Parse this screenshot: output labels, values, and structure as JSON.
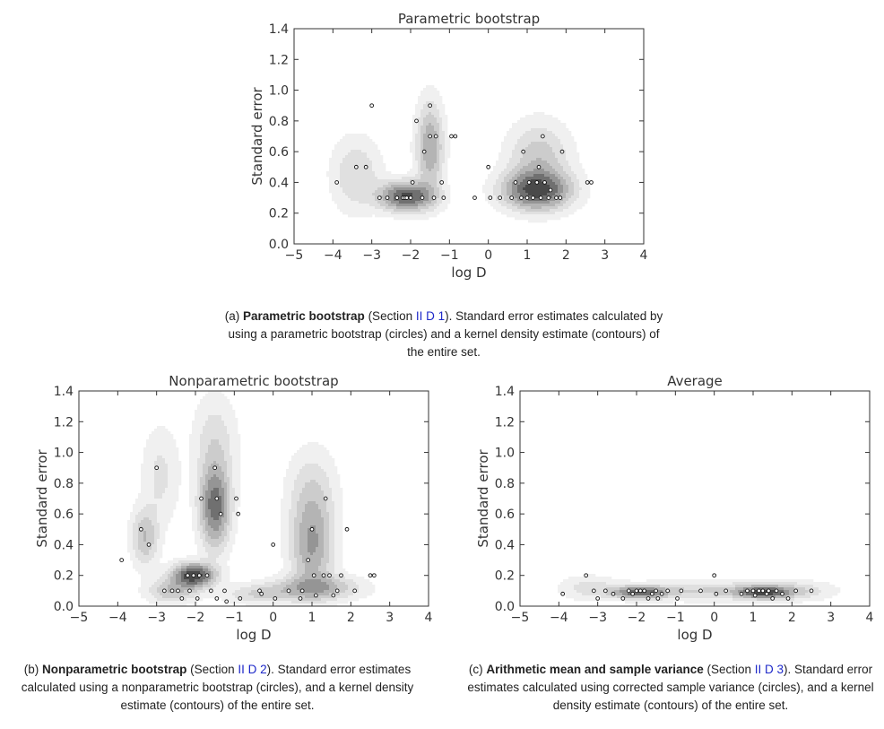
{
  "chart_data": [
    {
      "type": "scatter",
      "title": "Parametric bootstrap",
      "xlabel": "log D",
      "ylabel": "Standard error",
      "xlim": [
        -5,
        4
      ],
      "ylim": [
        0,
        1.4
      ],
      "xticks": [
        "−5",
        "−4",
        "−3",
        "−2",
        "−1",
        "0",
        "1",
        "2",
        "3",
        "4"
      ],
      "yticks": [
        "0.0",
        "0.2",
        "0.4",
        "0.6",
        "0.8",
        "1.0",
        "1.2",
        "1.4"
      ],
      "points": [
        [
          -3.9,
          0.4
        ],
        [
          -3.4,
          0.5
        ],
        [
          -3.15,
          0.5
        ],
        [
          -3.0,
          0.9
        ],
        [
          -2.8,
          0.3
        ],
        [
          -2.6,
          0.3
        ],
        [
          -2.35,
          0.3
        ],
        [
          -2.2,
          0.3
        ],
        [
          -2.15,
          0.3
        ],
        [
          -2.1,
          0.3
        ],
        [
          -2.0,
          0.3
        ],
        [
          -1.95,
          0.4
        ],
        [
          -1.85,
          0.8
        ],
        [
          -1.7,
          0.3
        ],
        [
          -1.65,
          0.6
        ],
        [
          -1.5,
          0.9
        ],
        [
          -1.5,
          0.7
        ],
        [
          -1.4,
          0.3
        ],
        [
          -1.35,
          0.7
        ],
        [
          -1.2,
          0.4
        ],
        [
          -1.15,
          0.3
        ],
        [
          -0.95,
          0.7
        ],
        [
          -0.85,
          0.7
        ],
        [
          -0.35,
          0.3
        ],
        [
          0.0,
          0.5
        ],
        [
          0.05,
          0.3
        ],
        [
          0.3,
          0.3
        ],
        [
          0.6,
          0.3
        ],
        [
          0.7,
          0.4
        ],
        [
          0.85,
          0.3
        ],
        [
          0.9,
          0.6
        ],
        [
          1.0,
          0.3
        ],
        [
          1.05,
          0.4
        ],
        [
          1.15,
          0.3
        ],
        [
          1.25,
          0.4
        ],
        [
          1.3,
          0.5
        ],
        [
          1.35,
          0.3
        ],
        [
          1.4,
          0.7
        ],
        [
          1.45,
          0.4
        ],
        [
          1.55,
          0.3
        ],
        [
          1.6,
          0.35
        ],
        [
          1.75,
          0.3
        ],
        [
          1.85,
          0.3
        ],
        [
          1.9,
          0.6
        ],
        [
          2.55,
          0.4
        ],
        [
          2.65,
          0.4
        ]
      ],
      "density_peaks": [
        {
          "x": -2.1,
          "y": 0.31,
          "sx": 0.45,
          "sy": 0.06,
          "w": 1.0
        },
        {
          "x": -1.5,
          "y": 0.63,
          "sx": 0.22,
          "sy": 0.18,
          "w": 0.55
        },
        {
          "x": 1.25,
          "y": 0.35,
          "sx": 0.55,
          "sy": 0.08,
          "w": 1.0
        },
        {
          "x": 1.3,
          "y": 0.55,
          "sx": 0.5,
          "sy": 0.15,
          "w": 0.35
        },
        {
          "x": -3.4,
          "y": 0.45,
          "sx": 0.4,
          "sy": 0.15,
          "w": 0.25
        }
      ]
    },
    {
      "type": "scatter",
      "title": "Nonparametric bootstrap",
      "xlabel": "log D",
      "ylabel": "Standard error",
      "xlim": [
        -5,
        4
      ],
      "ylim": [
        0,
        1.4
      ],
      "xticks": [
        "−5",
        "−4",
        "−3",
        "−2",
        "−1",
        "0",
        "1",
        "2",
        "3",
        "4"
      ],
      "yticks": [
        "0.0",
        "0.2",
        "0.4",
        "0.6",
        "0.8",
        "1.0",
        "1.2",
        "1.4"
      ],
      "points": [
        [
          -3.9,
          0.3
        ],
        [
          -3.4,
          0.5
        ],
        [
          -3.2,
          0.4
        ],
        [
          -3.0,
          0.9
        ],
        [
          -2.8,
          0.1
        ],
        [
          -2.6,
          0.1
        ],
        [
          -2.45,
          0.1
        ],
        [
          -2.35,
          0.05
        ],
        [
          -2.2,
          0.2
        ],
        [
          -2.15,
          0.1
        ],
        [
          -2.05,
          0.2
        ],
        [
          -1.95,
          0.05
        ],
        [
          -1.9,
          0.2
        ],
        [
          -1.85,
          0.7
        ],
        [
          -1.7,
          0.2
        ],
        [
          -1.6,
          0.1
        ],
        [
          -1.5,
          0.9
        ],
        [
          -1.45,
          0.05
        ],
        [
          -1.45,
          0.7
        ],
        [
          -1.35,
          0.6
        ],
        [
          -1.25,
          0.1
        ],
        [
          -1.2,
          0.03
        ],
        [
          -0.95,
          0.7
        ],
        [
          -0.9,
          0.6
        ],
        [
          -0.85,
          0.05
        ],
        [
          -0.35,
          0.1
        ],
        [
          -0.3,
          0.08
        ],
        [
          0.0,
          0.4
        ],
        [
          0.05,
          0.05
        ],
        [
          0.4,
          0.1
        ],
        [
          0.7,
          0.05
        ],
        [
          0.75,
          0.1
        ],
        [
          0.9,
          0.3
        ],
        [
          1.0,
          0.5
        ],
        [
          1.05,
          0.2
        ],
        [
          1.1,
          0.07
        ],
        [
          1.3,
          0.2
        ],
        [
          1.35,
          0.7
        ],
        [
          1.45,
          0.2
        ],
        [
          1.55,
          0.07
        ],
        [
          1.65,
          0.1
        ],
        [
          1.75,
          0.2
        ],
        [
          1.9,
          0.5
        ],
        [
          2.1,
          0.1
        ],
        [
          2.5,
          0.2
        ],
        [
          2.6,
          0.2
        ]
      ],
      "density_peaks": [
        {
          "x": -2.05,
          "y": 0.2,
          "sx": 0.35,
          "sy": 0.05,
          "w": 1.0
        },
        {
          "x": -1.5,
          "y": 0.65,
          "sx": 0.25,
          "sy": 0.17,
          "w": 0.75
        },
        {
          "x": -3.3,
          "y": 0.45,
          "sx": 0.22,
          "sy": 0.12,
          "w": 0.35
        },
        {
          "x": -2.9,
          "y": 0.85,
          "sx": 0.3,
          "sy": 0.2,
          "w": 0.15
        },
        {
          "x": -1.5,
          "y": 1.05,
          "sx": 0.35,
          "sy": 0.2,
          "w": 0.2
        },
        {
          "x": 1.0,
          "y": 0.4,
          "sx": 0.35,
          "sy": 0.2,
          "w": 0.5
        },
        {
          "x": 1.1,
          "y": 0.12,
          "sx": 0.7,
          "sy": 0.05,
          "w": 0.45
        },
        {
          "x": 1.0,
          "y": 0.75,
          "sx": 0.4,
          "sy": 0.18,
          "w": 0.18
        },
        {
          "x": -0.3,
          "y": 0.08,
          "sx": 0.6,
          "sy": 0.04,
          "w": 0.25
        },
        {
          "x": -2.6,
          "y": 0.1,
          "sx": 0.4,
          "sy": 0.05,
          "w": 0.35
        }
      ]
    },
    {
      "type": "scatter",
      "title": "Average",
      "xlabel": "log D",
      "ylabel": "Standard error",
      "xlim": [
        -5,
        4
      ],
      "ylim": [
        0,
        1.4
      ],
      "xticks": [
        "−5",
        "−4",
        "−3",
        "−2",
        "−1",
        "0",
        "1",
        "2",
        "3",
        "4"
      ],
      "yticks": [
        "0.0",
        "0.2",
        "0.4",
        "0.6",
        "0.8",
        "1.0",
        "1.2",
        "1.4"
      ],
      "points": [
        [
          -3.9,
          0.08
        ],
        [
          -3.3,
          0.2
        ],
        [
          -3.1,
          0.1
        ],
        [
          -3.0,
          0.05
        ],
        [
          -2.8,
          0.1
        ],
        [
          -2.6,
          0.08
        ],
        [
          -2.35,
          0.05
        ],
        [
          -2.2,
          0.1
        ],
        [
          -2.1,
          0.08
        ],
        [
          -2.0,
          0.1
        ],
        [
          -1.9,
          0.1
        ],
        [
          -1.8,
          0.1
        ],
        [
          -1.7,
          0.05
        ],
        [
          -1.6,
          0.08
        ],
        [
          -1.5,
          0.1
        ],
        [
          -1.45,
          0.05
        ],
        [
          -1.35,
          0.08
        ],
        [
          -1.2,
          0.1
        ],
        [
          -0.95,
          0.05
        ],
        [
          -0.85,
          0.1
        ],
        [
          -0.35,
          0.1
        ],
        [
          0.0,
          0.2
        ],
        [
          0.05,
          0.08
        ],
        [
          0.3,
          0.1
        ],
        [
          0.7,
          0.08
        ],
        [
          0.85,
          0.1
        ],
        [
          1.0,
          0.1
        ],
        [
          1.05,
          0.07
        ],
        [
          1.15,
          0.1
        ],
        [
          1.25,
          0.1
        ],
        [
          1.35,
          0.08
        ],
        [
          1.4,
          0.1
        ],
        [
          1.5,
          0.05
        ],
        [
          1.6,
          0.1
        ],
        [
          1.75,
          0.08
        ],
        [
          1.9,
          0.05
        ],
        [
          2.1,
          0.1
        ],
        [
          2.5,
          0.1
        ]
      ],
      "density_peaks": [
        {
          "x": -1.9,
          "y": 0.09,
          "sx": 0.45,
          "sy": 0.025,
          "w": 1.0
        },
        {
          "x": 1.25,
          "y": 0.09,
          "sx": 0.45,
          "sy": 0.025,
          "w": 1.0
        },
        {
          "x": -0.2,
          "y": 0.1,
          "sx": 1.4,
          "sy": 0.04,
          "w": 0.3
        },
        {
          "x": 1.9,
          "y": 0.1,
          "sx": 0.7,
          "sy": 0.04,
          "w": 0.25
        },
        {
          "x": -3.2,
          "y": 0.12,
          "sx": 0.5,
          "sy": 0.05,
          "w": 0.2
        }
      ]
    }
  ],
  "captions": {
    "a": {
      "prefix": "(a) ",
      "bold": "Parametric bootstrap",
      "pre_ref": " (Section ",
      "ref": "II D 1",
      "post_ref": "). Standard error estimates calculated by using a parametric bootstrap (circles) and a kernel density estimate (contours) of the entire set."
    },
    "b": {
      "prefix": "(b) ",
      "bold": "Nonparametric bootstrap",
      "pre_ref": " (Section ",
      "ref": "II D 2",
      "post_ref": "). Standard error estimates calculated using a nonparametric bootstrap (circles), and a kernel density estimate (contours) of the entire set."
    },
    "c": {
      "prefix": "(c) ",
      "bold": "Arithmetic mean and sample variance",
      "pre_ref": " (Section ",
      "ref": "II D 3",
      "post_ref": "). Standard error estimates calculated using corrected sample variance (circles), and a kernel density estimate (contours) of the entire set."
    }
  },
  "colors": {
    "contour_dark": "#3a3a3a",
    "contour_light": "#efefef",
    "reference_link": "#1d28c9"
  }
}
